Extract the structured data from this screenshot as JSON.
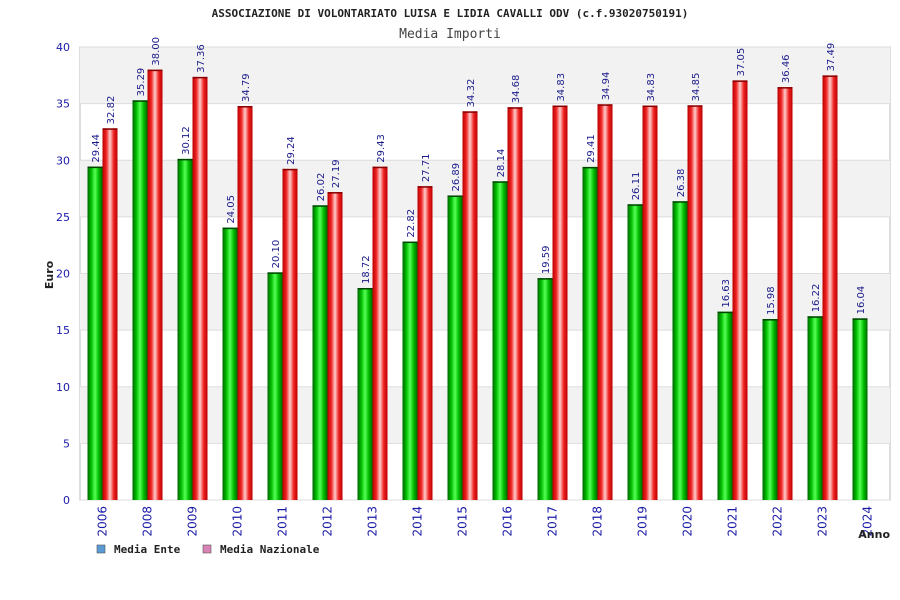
{
  "chart_data": {
    "type": "bar",
    "title": "ASSOCIAZIONE DI VOLONTARIATO LUISA E LIDIA CAVALLI ODV (c.f.93020750191)",
    "subtitle": "Media Importi",
    "xlabel": "Anno",
    "ylabel": "Euro",
    "ylim": [
      0,
      40
    ],
    "yticks": [
      0,
      5,
      10,
      15,
      20,
      25,
      30,
      35,
      40
    ],
    "grid": true,
    "legend_position": "bottom-left",
    "categories": [
      "2006",
      "2008",
      "2009",
      "2010",
      "2011",
      "2012",
      "2013",
      "2014",
      "2015",
      "2016",
      "2017",
      "2018",
      "2019",
      "2020",
      "2021",
      "2022",
      "2023",
      "2024"
    ],
    "series": [
      {
        "name": "Media Ente",
        "color": "#00aa00",
        "legend_color": "#5b9bd5",
        "values": [
          29.44,
          35.29,
          30.12,
          24.05,
          20.1,
          26.02,
          18.72,
          22.82,
          26.89,
          28.14,
          19.59,
          29.41,
          26.11,
          26.38,
          16.63,
          15.98,
          16.22,
          16.04
        ],
        "labels": [
          "29.44",
          "35.29",
          "30.12",
          "24.05",
          "20.10",
          "26.02",
          "18.72",
          "22.82",
          "26.89",
          "28.14",
          "19.59",
          "29.41",
          "26.11",
          "26.38",
          "16.63",
          "15.98",
          "16.22",
          "16.04"
        ]
      },
      {
        "name": "Media Nazionale",
        "color": "#dd1111",
        "legend_color": "#d982b5",
        "values": [
          32.82,
          38.0,
          37.36,
          34.79,
          29.24,
          27.19,
          29.43,
          27.71,
          34.32,
          34.68,
          34.83,
          34.94,
          34.83,
          34.85,
          37.05,
          36.46,
          37.49,
          null
        ],
        "labels": [
          "32.82",
          "38.00",
          "37.36",
          "34.79",
          "29.24",
          "27.19",
          "29.43",
          "27.71",
          "34.32",
          "34.68",
          "34.83",
          "34.94",
          "34.83",
          "34.85",
          "37.05",
          "36.46",
          "37.49",
          ""
        ]
      }
    ]
  }
}
